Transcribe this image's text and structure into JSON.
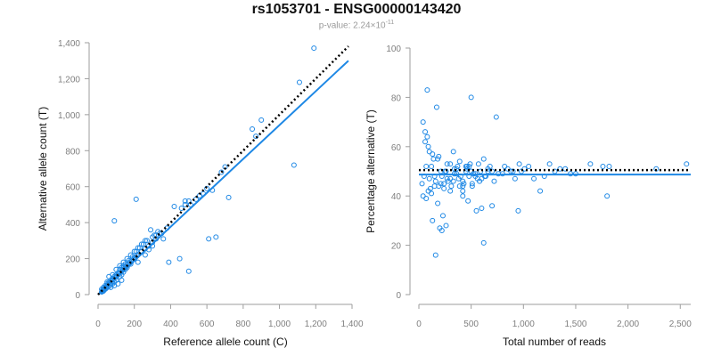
{
  "header": {
    "title": "rs1053701 - ENSG00000143420",
    "subtitle_prefix": "p-value: 2.24×10",
    "subtitle_exponent": "-11"
  },
  "colors": {
    "points": "#1e88e5",
    "fit": "#1e88e5",
    "reference": "#000000",
    "axis": "#9e9e9e"
  },
  "chart_data": [
    {
      "type": "scatter",
      "xlabel": "Reference allele count (C)",
      "ylabel": "Alternative allele count (T)",
      "xlim": [
        0,
        1400
      ],
      "ylim": [
        0,
        1400
      ],
      "xticks": [
        0,
        200,
        400,
        600,
        800,
        1000,
        1200,
        1400
      ],
      "xtick_labels": [
        "0",
        "200",
        "400",
        "600",
        "800",
        "1,000",
        "1,200",
        "1,400"
      ],
      "yticks": [
        0,
        200,
        400,
        600,
        800,
        1000,
        1200,
        1400
      ],
      "ytick_labels": [
        "0",
        "200",
        "400",
        "600",
        "800",
        "1,000",
        "1,200",
        "1,400"
      ],
      "grid": false,
      "points": {
        "x": [
          1190,
          1110,
          680,
          850,
          900,
          870,
          720,
          1080,
          480,
          420,
          450,
          390,
          290,
          210,
          90,
          500,
          340,
          700,
          610,
          650,
          630,
          510,
          600,
          580,
          540,
          480,
          560,
          500,
          460,
          310,
          360,
          330,
          300,
          270,
          250,
          230,
          210,
          190,
          170,
          150,
          140,
          130,
          120,
          110,
          100,
          90,
          80,
          70,
          60,
          50,
          40,
          30,
          20,
          25,
          35,
          45,
          55,
          65,
          75,
          85,
          95,
          105,
          115,
          125,
          135,
          145,
          155,
          165,
          175,
          185,
          195,
          205,
          215,
          225,
          240,
          260,
          280,
          300,
          320,
          350,
          380,
          220,
          260,
          200,
          180,
          160,
          150,
          140,
          130,
          120,
          100,
          90,
          80,
          70,
          60,
          50,
          45,
          40,
          35,
          30,
          28,
          26,
          24,
          22,
          20,
          60,
          80,
          100,
          120,
          140,
          160,
          180,
          200,
          220,
          240,
          260,
          280,
          300,
          320,
          130,
          110,
          90,
          70,
          50,
          30
        ],
        "y": [
          1370,
          1180,
          680,
          920,
          970,
          880,
          540,
          720,
          520,
          490,
          200,
          180,
          360,
          530,
          410,
          130,
          340,
          710,
          310,
          320,
          580,
          500,
          590,
          560,
          530,
          500,
          550,
          520,
          480,
          330,
          310,
          350,
          320,
          300,
          280,
          260,
          240,
          210,
          190,
          170,
          160,
          150,
          140,
          120,
          110,
          100,
          90,
          80,
          70,
          60,
          50,
          40,
          30,
          25,
          35,
          45,
          55,
          65,
          75,
          85,
          95,
          105,
          115,
          125,
          135,
          145,
          155,
          165,
          175,
          185,
          195,
          205,
          215,
          225,
          240,
          255,
          270,
          290,
          310,
          340,
          370,
          180,
          220,
          200,
          170,
          150,
          140,
          125,
          110,
          100,
          80,
          70,
          60,
          55,
          45,
          40,
          35,
          30,
          28,
          25,
          22,
          20,
          18,
          16,
          15,
          100,
          110,
          140,
          160,
          180,
          200,
          220,
          240,
          260,
          280,
          300,
          250,
          270,
          330,
          80,
          60,
          50,
          40,
          70,
          20
        ]
      },
      "fit_line": {
        "x": [
          0,
          1380
        ],
        "y": [
          0,
          1300
        ]
      },
      "reference_line": {
        "x": [
          0,
          1380
        ],
        "y": [
          0,
          1380
        ]
      }
    },
    {
      "type": "scatter",
      "xlabel": "Total number of reads",
      "ylabel": "Percentage alternative (T)",
      "xlim": [
        0,
        2600
      ],
      "ylim": [
        0,
        100
      ],
      "xticks": [
        0,
        500,
        1000,
        1500,
        2000,
        2500
      ],
      "xtick_labels": [
        "0",
        "500",
        "1,000",
        "1,500",
        "2,000",
        "2,500"
      ],
      "yticks": [
        0,
        20,
        40,
        60,
        80,
        100
      ],
      "ytick_labels": [
        "0",
        "20",
        "40",
        "60",
        "80",
        "100"
      ],
      "grid": false,
      "points": {
        "x": [
          80,
          170,
          500,
          740,
          40,
          60,
          90,
          120,
          150,
          180,
          210,
          240,
          270,
          300,
          330,
          360,
          390,
          420,
          450,
          480,
          510,
          540,
          570,
          600,
          630,
          660,
          700,
          760,
          820,
          900,
          960,
          1010,
          1100,
          1160,
          1250,
          1300,
          1400,
          1500,
          1640,
          1760,
          1800,
          1820,
          2270,
          2560,
          950,
          620,
          550,
          600,
          160,
          200,
          130,
          260,
          220,
          230,
          420,
          470,
          30,
          50,
          70,
          100,
          110,
          140,
          190,
          250,
          280,
          310,
          340,
          370,
          400,
          430,
          460,
          490,
          520,
          560,
          590,
          640,
          680,
          720,
          800,
          850,
          880,
          920,
          980,
          1050,
          1200,
          1350,
          1450,
          60,
          80,
          100,
          130,
          160,
          190,
          220,
          260,
          300,
          340,
          380,
          420,
          460,
          500,
          540,
          580,
          620,
          660,
          700,
          40,
          70,
          90,
          120,
          150,
          180,
          210,
          240,
          270,
          300,
          330,
          360,
          390,
          420,
          450,
          480,
          510
        ],
        "y": [
          83,
          76,
          80,
          72,
          70,
          66,
          60,
          52,
          48,
          55,
          50,
          45,
          53,
          47,
          58,
          51,
          54,
          46,
          50,
          52,
          44,
          49,
          53,
          47,
          48,
          51,
          50,
          49,
          52,
          50,
          53,
          51,
          47,
          42,
          53,
          50,
          51,
          49,
          53,
          52,
          40,
          52,
          51,
          53,
          34,
          21,
          34,
          35,
          16,
          27,
          30,
          28,
          26,
          32,
          42,
          38,
          45,
          48,
          52,
          47,
          43,
          55,
          56,
          50,
          46,
          44,
          49,
          52,
          48,
          45,
          51,
          53,
          49,
          47,
          50,
          48,
          52,
          46,
          49,
          51,
          50,
          47,
          50,
          52,
          48,
          51,
          49,
          62,
          64,
          58,
          57,
          46,
          44,
          48,
          50,
          53,
          51,
          47,
          44,
          52,
          50,
          48,
          46,
          55,
          50,
          36,
          40,
          39,
          42,
          41,
          44,
          37,
          45,
          43,
          47,
          42,
          46,
          49,
          44,
          40,
          52,
          48,
          45
        ]
      },
      "fit_line": {
        "x": [
          0,
          2600
        ],
        "y": [
          48.7,
          48.7
        ]
      },
      "reference_line": {
        "x": [
          0,
          2600
        ],
        "y": [
          50.5,
          50.5
        ]
      }
    }
  ]
}
